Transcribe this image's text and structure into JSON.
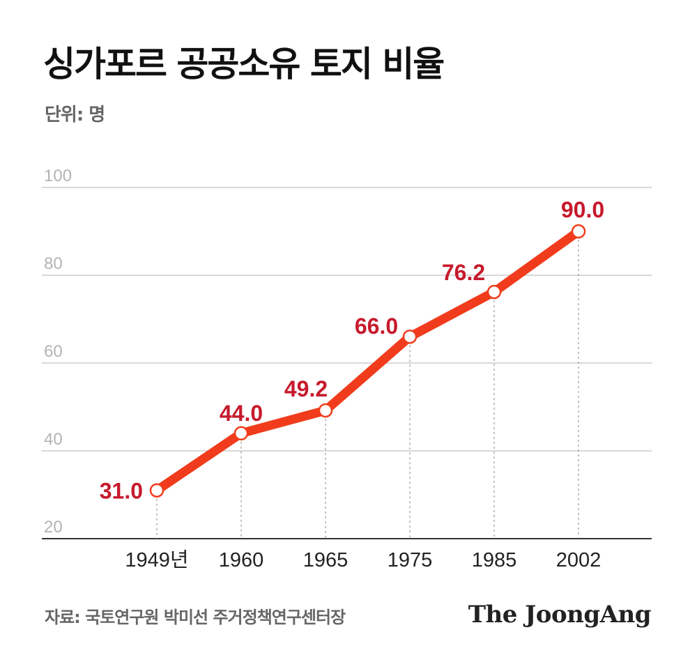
{
  "header": {
    "title": "싱가포르 공공소유 토지 비율",
    "unit": "단위: 명"
  },
  "footer": {
    "source": "자료: 국토연구원 박미선 주거정책연구센터장",
    "logo": "The JoongAng"
  },
  "colors": {
    "line": "#f03c1c",
    "label": "#c61a2c",
    "grid": "#cccccc",
    "axis": "#333333"
  },
  "chart_data": {
    "type": "line",
    "title": "싱가포르 공공소유 토지 비율",
    "ylabel": "단위: 명",
    "categories": [
      "1949년",
      "1960",
      "1965",
      "1975",
      "1985",
      "2002"
    ],
    "values": [
      31.0,
      44.0,
      49.2,
      66.0,
      76.2,
      90.0
    ],
    "value_labels": [
      "31.0",
      "44.0",
      "49.2",
      "66.0",
      "76.2",
      "90.0"
    ],
    "yticks": [
      20,
      40,
      60,
      80,
      100
    ],
    "ylim": [
      20,
      100
    ],
    "grid": true,
    "markers": "hollow-circle"
  }
}
